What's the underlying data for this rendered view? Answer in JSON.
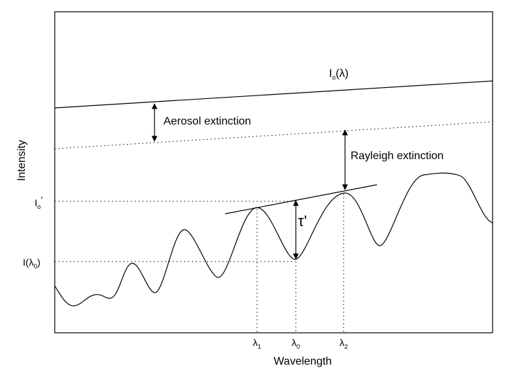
{
  "axes": {
    "xlabel": "Wavelength",
    "ylabel": "Intensity"
  },
  "curves": {
    "incident": {
      "main": "I",
      "sub": "o",
      "paren": "(λ)"
    }
  },
  "annotations": {
    "aerosol": "Aerosol extinction",
    "rayleigh": "Rayleigh extinction",
    "tau": "τ'"
  },
  "y_ticks": {
    "io_prime": {
      "main": "I",
      "sub": "o",
      "suffix": "'"
    },
    "i_lambda0": {
      "main": "I(",
      "greek": "λ",
      "sub": "0",
      "suffix": ")"
    }
  },
  "x_ticks": [
    {
      "greek": "λ",
      "sub": "1"
    },
    {
      "greek": "λ",
      "sub": "0"
    },
    {
      "greek": "λ",
      "sub": "2"
    }
  ],
  "colors": {
    "line": "#000000",
    "background": "#ffffff"
  }
}
